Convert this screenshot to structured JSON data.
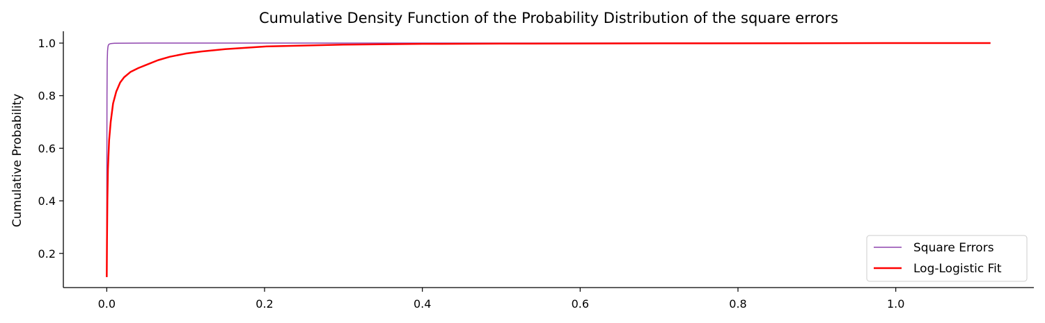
{
  "chart_data": {
    "type": "line",
    "title": "Cumulative Density Function of the Probability Distribution of the square errors",
    "xlabel": "",
    "ylabel": "Cumulative Probability",
    "xlim": [
      -0.055,
      1.175
    ],
    "ylim": [
      0.07,
      1.045
    ],
    "xticks": [
      "0.0",
      "0.2",
      "0.4",
      "0.6",
      "0.8",
      "1.0"
    ],
    "yticks": [
      "0.2",
      "0.4",
      "0.6",
      "0.8",
      "1.0"
    ],
    "grid": false,
    "legend_position": "lower-right",
    "series": [
      {
        "name": "Square Errors",
        "color": "#8e44ad",
        "x": [
          0.0,
          0.0001,
          0.0003,
          0.0006,
          0.001,
          0.0015,
          0.002,
          0.003,
          0.005,
          0.01,
          0.05,
          0.2,
          0.5,
          1.12
        ],
        "y": [
          0.11,
          0.5,
          0.8,
          0.93,
          0.97,
          0.985,
          0.992,
          0.996,
          0.998,
          0.9995,
          1.0,
          1.0,
          1.0,
          1.0
        ]
      },
      {
        "name": "Log-Logistic Fit",
        "color": "#ff0000",
        "x": [
          0.0,
          0.0003,
          0.0008,
          0.0015,
          0.003,
          0.005,
          0.008,
          0.012,
          0.017,
          0.022,
          0.03,
          0.04,
          0.05,
          0.065,
          0.08,
          0.1,
          0.12,
          0.15,
          0.2,
          0.3,
          0.4,
          0.5,
          0.7,
          1.0,
          1.12
        ],
        "y": [
          0.11,
          0.25,
          0.4,
          0.52,
          0.63,
          0.7,
          0.77,
          0.815,
          0.85,
          0.87,
          0.89,
          0.905,
          0.917,
          0.935,
          0.948,
          0.96,
          0.968,
          0.977,
          0.987,
          0.994,
          0.997,
          0.998,
          0.999,
          1.0,
          1.0
        ]
      }
    ]
  }
}
